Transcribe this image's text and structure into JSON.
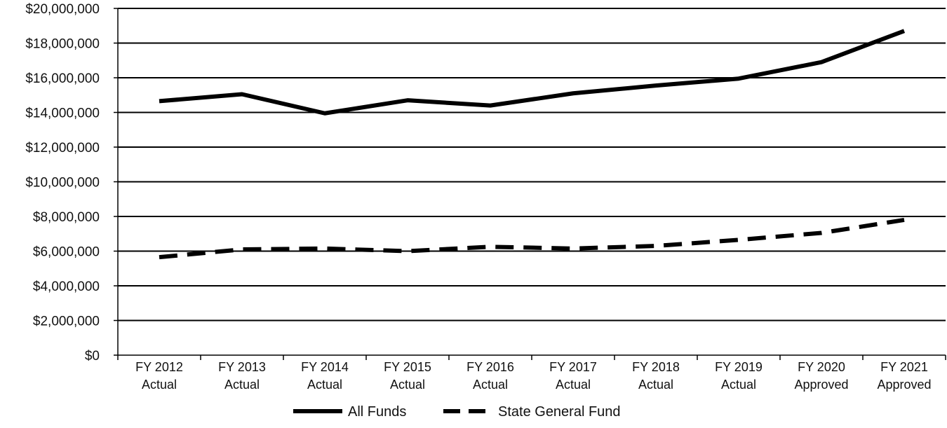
{
  "chart_data": {
    "type": "line",
    "title": "",
    "xlabel": "",
    "ylabel": "",
    "categories": [
      [
        "FY 2012",
        "Actual"
      ],
      [
        "FY 2013",
        "Actual"
      ],
      [
        "FY 2014",
        "Actual"
      ],
      [
        "FY 2015",
        "Actual"
      ],
      [
        "FY 2016",
        "Actual"
      ],
      [
        "FY 2017",
        "Actual"
      ],
      [
        "FY 2018",
        "Actual"
      ],
      [
        "FY 2019",
        "Actual"
      ],
      [
        "FY 2020",
        "Approved"
      ],
      [
        "FY 2021",
        "Approved"
      ]
    ],
    "ylim": [
      0,
      20000000
    ],
    "yticks": [
      0,
      2000000,
      4000000,
      6000000,
      8000000,
      10000000,
      12000000,
      14000000,
      16000000,
      18000000,
      20000000
    ],
    "ytick_labels": [
      "$0",
      "$2,000,000",
      "$4,000,000",
      "$6,000,000",
      "$8,000,000",
      "$10,000,000",
      "$12,000,000",
      "$14,000,000",
      "$16,000,000",
      "$18,000,000",
      "$20,000,000"
    ],
    "grid": true,
    "legend_position": "bottom",
    "series": [
      {
        "name": "All Funds",
        "style": "solid",
        "color": "#000000",
        "values": [
          14650000,
          15050000,
          13950000,
          14700000,
          14400000,
          15100000,
          15550000,
          15950000,
          16900000,
          18700000
        ]
      },
      {
        "name": "State General Fund",
        "style": "dashed",
        "color": "#000000",
        "values": [
          5650000,
          6100000,
          6150000,
          6000000,
          6250000,
          6150000,
          6300000,
          6650000,
          7050000,
          7800000
        ]
      }
    ]
  }
}
